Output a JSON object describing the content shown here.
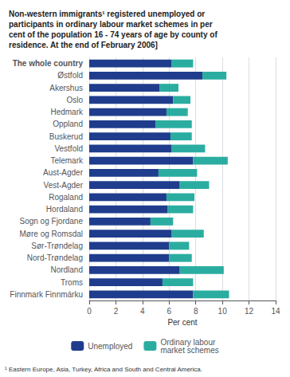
{
  "chart_data": {
    "type": "bar",
    "orientation": "horizontal",
    "stacked": true,
    "title": "Non-western immigrants¹ registered unemployed or\nparticipants in ordinary labour market schemes in per\ncent of the population 16 - 74 years of age by county of\nresidence. At the end of February 2006]",
    "footnote": "¹ Eastern Europe, Asia, Turkey, Africa and South and Central America.",
    "xlabel": "Per cent",
    "categories": [
      "The whole country",
      "Østfold",
      "Akershus",
      "Oslo",
      "Hedmark",
      "Oppland",
      "Buskerud",
      "Vestfold",
      "Telemark",
      "Aust-Agder",
      "Vest-Agder",
      "Rogaland",
      "Hordaland",
      "Sogn og Fjordane",
      "Møre og Romsdal",
      "Sør-Trøndelag",
      "Nord-Trøndelag",
      "Nordland",
      "Troms",
      "Finnmark Finnmárku"
    ],
    "series": [
      {
        "name": "Unemployed",
        "color": "#1f3d8c",
        "values": [
          6.2,
          8.5,
          5.3,
          6.3,
          5.8,
          5.0,
          6.1,
          6.2,
          7.8,
          5.2,
          6.8,
          5.8,
          5.9,
          4.6,
          6.2,
          6.0,
          6.0,
          6.8,
          5.5,
          7.8
        ]
      },
      {
        "name": "Ordinary labour\nmarket schemes",
        "color": "#2aada0",
        "values": [
          1.6,
          1.8,
          1.4,
          1.3,
          1.6,
          2.7,
          1.6,
          2.5,
          2.6,
          2.9,
          2.2,
          2.1,
          1.9,
          1.7,
          2.4,
          1.5,
          1.7,
          3.3,
          2.3,
          2.7
        ]
      }
    ],
    "xlim": [
      0,
      14
    ],
    "xticks": [
      0,
      2,
      4,
      6,
      8,
      10,
      12,
      14
    ],
    "grid": true,
    "legend": "bottom"
  }
}
